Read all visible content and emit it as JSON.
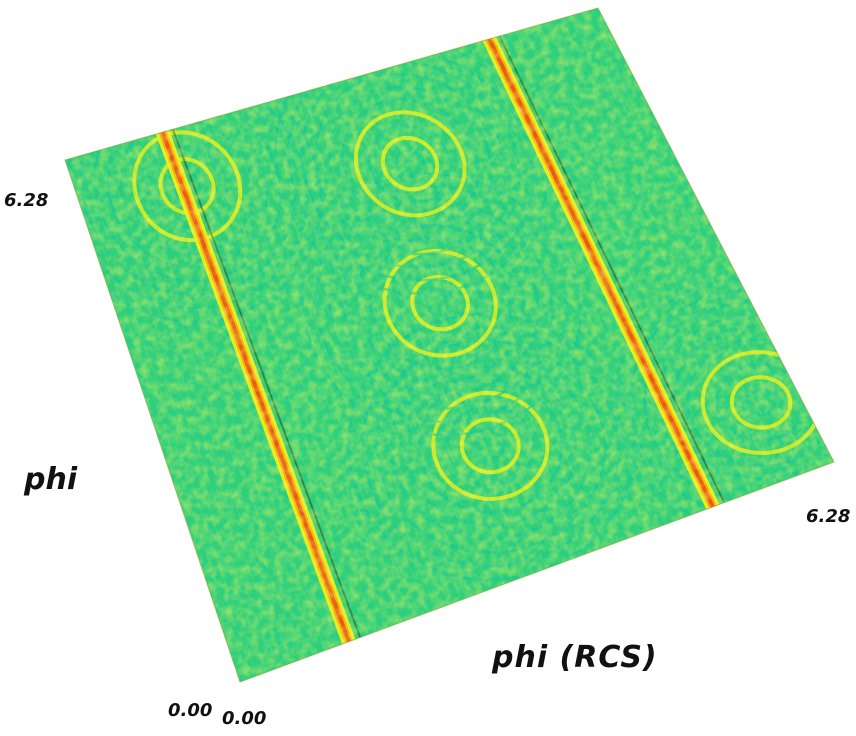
{
  "chart_data": {
    "type": "surface",
    "xlabel": "phi (RCS)",
    "ylabel": "phi",
    "xlim": [
      0.0,
      6.28
    ],
    "ylim": [
      0.0,
      6.28
    ],
    "x_ticks": [
      "0.00",
      "6.28"
    ],
    "y_ticks": [
      "0.00",
      "6.28"
    ],
    "colormap": [
      "#18c49a",
      "#2fd27a",
      "#8ee03a",
      "#e6ee1a",
      "#f5b010",
      "#e85a14"
    ],
    "ridges_x": [
      1.15,
      5.0
    ],
    "grid": false,
    "legend": "none"
  }
}
